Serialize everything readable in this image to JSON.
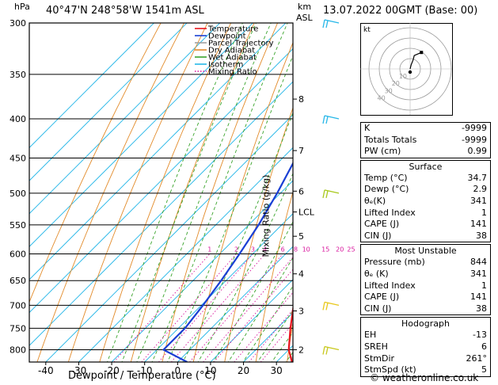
{
  "header": {
    "location": "40°47'N  248°58'W  1541m  ASL",
    "datetime": "13.07.2022  00GMT  (Base: 00)",
    "hpa_unit": "hPa",
    "km_unit": "km",
    "asl_unit": "ASL"
  },
  "footer": {
    "credit": "© weatheronline.co.uk"
  },
  "chart_data": {
    "type": "line",
    "xlabel": "Dewpoint / Temperature (°C)",
    "ylabel": "",
    "y2label": "Mixing Ratio (g/kg)",
    "xlim": [
      -45,
      35
    ],
    "ylim_hpa": [
      300,
      830
    ],
    "skew": "temperature lines skewed 45°",
    "x_ticks": [
      -40,
      -30,
      -20,
      -10,
      0,
      10,
      20,
      30
    ],
    "pressure_ticks": [
      300,
      350,
      400,
      450,
      500,
      550,
      600,
      650,
      700,
      750,
      800
    ],
    "km_ticks": [
      {
        "label": "8",
        "p": 377
      },
      {
        "label": "7",
        "p": 440
      },
      {
        "label": "6",
        "p": 497
      },
      {
        "label": "LCL",
        "p": 529
      },
      {
        "label": "5",
        "p": 569
      },
      {
        "label": "4",
        "p": 637
      },
      {
        "label": "3",
        "p": 712
      },
      {
        "label": "2",
        "p": 800
      }
    ],
    "mixing_ratio_labels": [
      "1",
      "2",
      "3",
      "4",
      "6",
      "8",
      "10",
      "15",
      "20",
      "25"
    ],
    "mixing_ratio_label_p": 600,
    "legend": [
      {
        "name": "Temperature",
        "color": "#e8151d"
      },
      {
        "name": "Dewpoint",
        "color": "#1a3fd4"
      },
      {
        "name": "Parcel Trajectory",
        "color": "#a0a0a0"
      },
      {
        "name": "Dry Adiabat",
        "color": "#e28b2a"
      },
      {
        "name": "Wet Adiabat",
        "color": "#3aa42c"
      },
      {
        "name": "Isotherm",
        "color": "#27b7e8"
      },
      {
        "name": "Mixing Ratio",
        "color": "#d8149c"
      }
    ],
    "legend_position": "top-left",
    "series": [
      {
        "name": "Temperature",
        "points": [
          [
            830,
            34.7
          ],
          [
            800,
            30.0
          ],
          [
            750,
            24.0
          ],
          [
            700,
            18.0
          ],
          [
            650,
            12.0
          ],
          [
            600,
            6.0
          ],
          [
            550,
            -0.5
          ],
          [
            500,
            -7.5
          ],
          [
            450,
            -14.0
          ],
          [
            400,
            -21.0
          ],
          [
            350,
            -28.0
          ],
          [
            300,
            -36.0
          ]
        ]
      },
      {
        "name": "Dewpoint",
        "points": [
          [
            830,
            2.9
          ],
          [
            800,
            -8.0
          ],
          [
            750,
            -8.0
          ],
          [
            700,
            -9.5
          ],
          [
            650,
            -11.5
          ],
          [
            600,
            -14.0
          ],
          [
            550,
            -17.0
          ],
          [
            500,
            -21.0
          ],
          [
            450,
            -26.0
          ],
          [
            400,
            -31.0
          ],
          [
            380,
            -38.0
          ],
          [
            350,
            -51.0
          ],
          [
            300,
            -56.0
          ]
        ]
      },
      {
        "name": "Parcel Trajectory",
        "points": [
          [
            830,
            34.7
          ],
          [
            750,
            26.0
          ],
          [
            700,
            19.5
          ],
          [
            650,
            12.5
          ],
          [
            600,
            5.5
          ],
          [
            560,
            0.0
          ],
          [
            530,
            -4.0
          ],
          [
            500,
            -8.0
          ],
          [
            450,
            -14.0
          ],
          [
            400,
            -20.5
          ],
          [
            350,
            -28.0
          ],
          [
            300,
            -36.0
          ]
        ]
      }
    ],
    "wind_barbs": [
      {
        "p": 300,
        "color": "#27b7e8"
      },
      {
        "p": 400,
        "color": "#27b7e8"
      },
      {
        "p": 500,
        "color": "#a8c81c"
      },
      {
        "p": 700,
        "color": "#e8c81c"
      },
      {
        "p": 800,
        "color": "#c8c81c"
      }
    ]
  },
  "hodograph": {
    "unit_label": "kt",
    "ring_labels": [
      "10",
      "20",
      "30",
      "40"
    ],
    "trace": [
      [
        0,
        0
      ],
      [
        1,
        4
      ],
      [
        3,
        9
      ],
      [
        4,
        13
      ],
      [
        11,
        16
      ]
    ]
  },
  "stats": {
    "top": [
      {
        "label": "K",
        "value": "-9999"
      },
      {
        "label": "Totals Totals",
        "value": "-9999"
      },
      {
        "label": "PW (cm)",
        "value": "0.99"
      }
    ],
    "surface": {
      "title": "Surface",
      "rows": [
        {
          "label": "Temp (°C)",
          "value": "34.7"
        },
        {
          "label": "Dewp (°C)",
          "value": "2.9"
        },
        {
          "label": "θₑ(K)",
          "value": "341"
        },
        {
          "label": "Lifted Index",
          "value": "1"
        },
        {
          "label": "CAPE (J)",
          "value": "141"
        },
        {
          "label": "CIN (J)",
          "value": "38"
        }
      ]
    },
    "unstable": {
      "title": "Most Unstable",
      "rows": [
        {
          "label": "Pressure (mb)",
          "value": "844"
        },
        {
          "label": "θₑ (K)",
          "value": "341"
        },
        {
          "label": "Lifted Index",
          "value": "1"
        },
        {
          "label": "CAPE (J)",
          "value": "141"
        },
        {
          "label": "CIN (J)",
          "value": "38"
        }
      ]
    },
    "hodo": {
      "title": "Hodograph",
      "rows": [
        {
          "label": "EH",
          "value": "-13"
        },
        {
          "label": "SREH",
          "value": "6"
        },
        {
          "label": "StmDir",
          "value": "261°"
        },
        {
          "label": "StmSpd (kt)",
          "value": "5"
        }
      ]
    }
  }
}
